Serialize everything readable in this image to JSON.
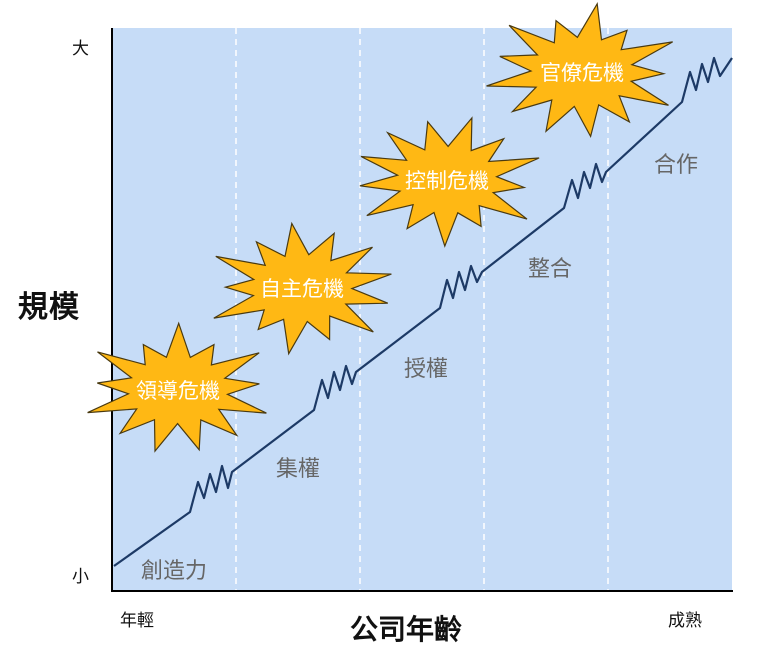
{
  "axes": {
    "y_label": "規模",
    "y_max": "大",
    "y_min": "小",
    "x_label": "公司年齡",
    "x_min": "年輕",
    "x_max": "成熟"
  },
  "phases": [
    "創造力",
    "集權",
    "授權",
    "整合",
    "合作"
  ],
  "crises": [
    "領導危機",
    "自主危機",
    "控制危機",
    "官僚危機"
  ],
  "colors": {
    "background": "#c6dcf7",
    "line": "#1d3a66",
    "burst_fill": "#ffb814",
    "burst_stroke": "#4a3a10",
    "crisis_text": "#ffffff",
    "phase_text": "#666666",
    "divider": "#ffffff"
  }
}
